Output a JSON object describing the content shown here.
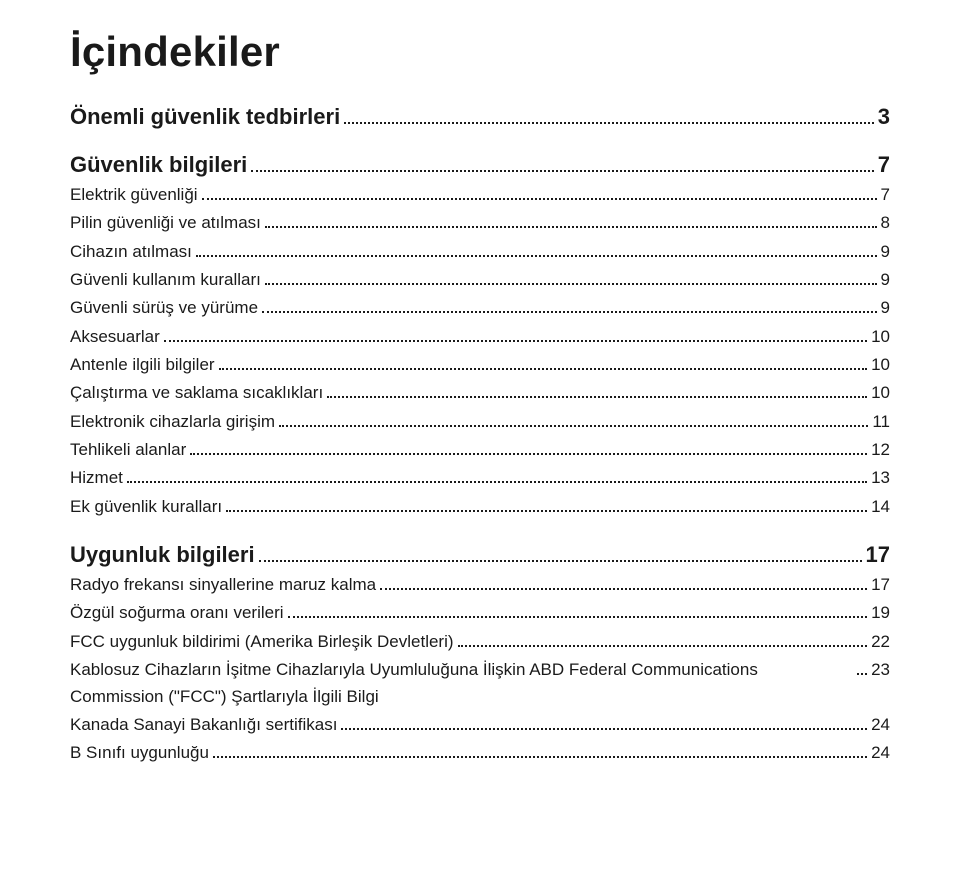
{
  "title": "İçindekiler",
  "sections": [
    {
      "heading": "Önemli güvenlik tedbirleri",
      "page": "3",
      "items": []
    },
    {
      "heading": "Güvenlik bilgileri",
      "page": "7",
      "items": [
        {
          "label": "Elektrik güvenliği",
          "page": "7"
        },
        {
          "label": "Pilin güvenliği ve atılması",
          "page": "8"
        },
        {
          "label": "Cihazın atılması",
          "page": "9"
        },
        {
          "label": "Güvenli kullanım kuralları",
          "page": "9"
        },
        {
          "label": "Güvenli sürüş ve yürüme",
          "page": "9"
        },
        {
          "label": "Aksesuarlar",
          "page": "10"
        },
        {
          "label": "Antenle ilgili bilgiler",
          "page": "10"
        },
        {
          "label": "Çalıştırma ve saklama sıcaklıkları",
          "page": "10"
        },
        {
          "label": "Elektronik cihazlarla girişim",
          "page": "11"
        },
        {
          "label": "Tehlikeli alanlar",
          "page": "12"
        },
        {
          "label": "Hizmet",
          "page": "13"
        },
        {
          "label": "Ek güvenlik kuralları",
          "page": "14"
        }
      ]
    },
    {
      "heading": "Uygunluk bilgileri",
      "page": "17",
      "items": [
        {
          "label": "Radyo frekansı sinyallerine maruz kalma",
          "page": "17"
        },
        {
          "label": "Özgül soğurma oranı verileri",
          "page": "19"
        },
        {
          "label": "FCC uygunluk bildirimi (Amerika Birleşik Devletleri)",
          "page": "22"
        },
        {
          "label": "Kablosuz Cihazların İşitme Cihazlarıyla Uyumluluğuna İlişkin ABD Federal Communications Commission (\"FCC\") Şartlarıyla İlgili Bilgi",
          "page": "23"
        },
        {
          "label": "Kanada Sanayi Bakanlığı sertifikası",
          "page": "24"
        },
        {
          "label": "B Sınıfı uygunluğu",
          "page": "24"
        }
      ]
    }
  ],
  "colors": {
    "text": "#1a1a1a",
    "background": "#ffffff",
    "dots": "#1a1a1a"
  },
  "typography": {
    "title_pt": 42,
    "section_pt": 22,
    "item_pt": 17,
    "family": "Arial"
  }
}
